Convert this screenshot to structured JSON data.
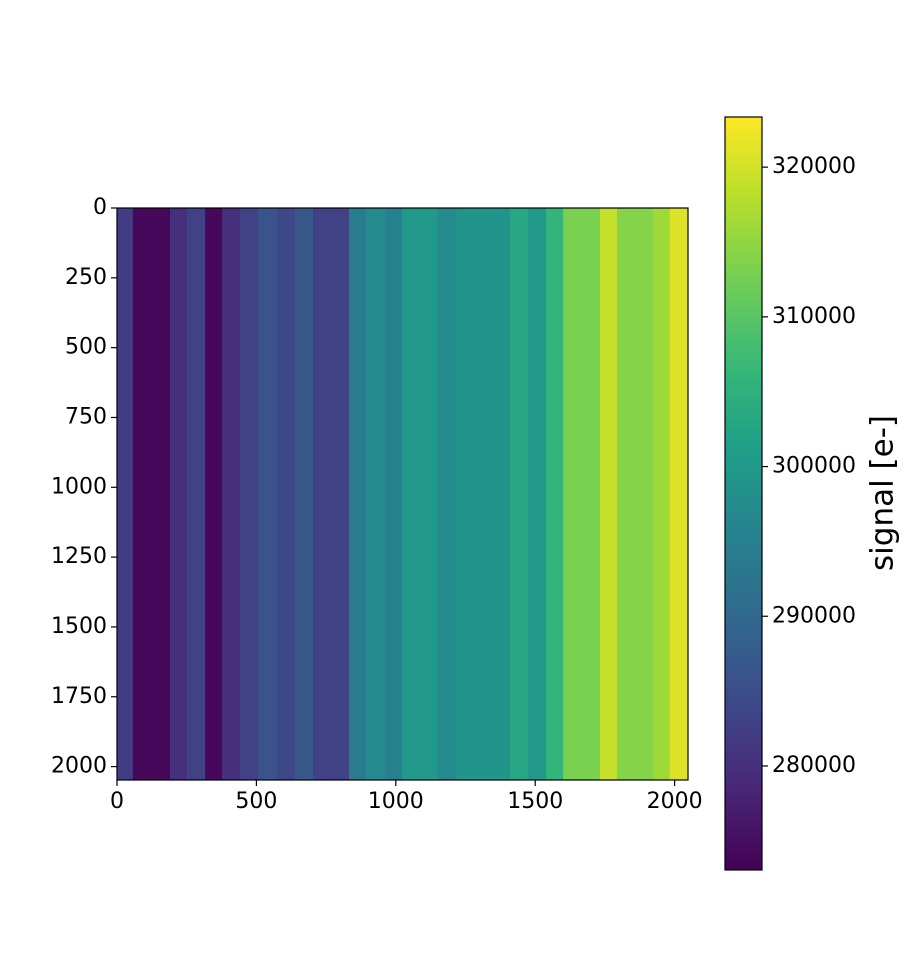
{
  "chart_data": {
    "type": "heatmap",
    "colorbar_label": "signal [e-]",
    "colormap": "viridis",
    "x_edges": [
      0,
      57,
      190,
      251,
      316,
      377,
      441,
      506,
      574,
      638,
      703,
      832,
      893,
      961,
      1022,
      1151,
      1216,
      1409,
      1474,
      1539,
      1600,
      1732,
      1793,
      1922,
      1983,
      2048
    ],
    "values": [
      282000,
      274000,
      280000,
      283000,
      274000,
      280000,
      283000,
      286000,
      284000,
      287000,
      283000,
      294000,
      297000,
      295000,
      300000,
      297000,
      299000,
      303000,
      300000,
      306000,
      313000,
      319000,
      314000,
      316000,
      321000
    ],
    "xlim": [
      0,
      2048
    ],
    "xticks": [
      0,
      500,
      1000,
      1500,
      2000
    ],
    "ylim": [
      2048,
      0
    ],
    "yticks": [
      0,
      250,
      500,
      750,
      1000,
      1250,
      1500,
      1750,
      2000
    ],
    "clim": [
      273050,
      323350
    ],
    "cticks": [
      280000,
      290000,
      300000,
      310000,
      320000
    ]
  }
}
